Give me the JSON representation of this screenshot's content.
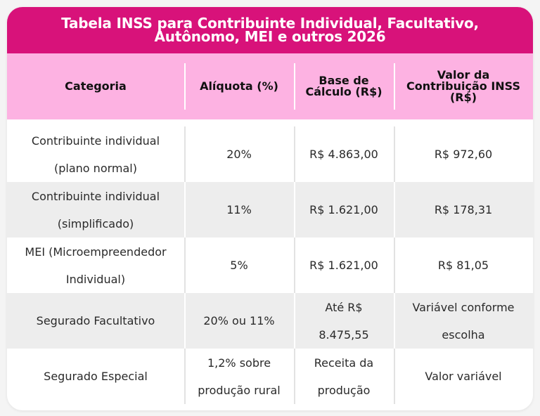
{
  "title": "Tabela INSS para Contribuinte Individual, Facultativo, Autônomo, MEI e outros 2026",
  "colors": {
    "title_bar": "#d8127a",
    "header_row": "#fdb2e2",
    "alt_row": "#ededed"
  },
  "table": {
    "headers": [
      "Categoria",
      "Alíquota (%)",
      "Base de Cálculo (R$)",
      "Valor da Contribuição INSS (R$)"
    ],
    "rows": [
      [
        "Contribuinte individual (plano normal)",
        "20%",
        "R$ 4.863,00",
        "R$ 972,60"
      ],
      [
        "Contribuinte individual (simplificado)",
        "11%",
        "R$ 1.621,00",
        "R$ 178,31"
      ],
      [
        "MEI (Microempreendedor Individual)",
        "5%",
        "R$ 1.621,00",
        "R$ 81,05"
      ],
      [
        "Segurado Facultativo",
        "20% ou 11%",
        "Até R$ 8.475,55",
        "Variável conforme escolha"
      ],
      [
        "Segurado Especial",
        "1,2% sobre produção rural",
        "Receita da produção",
        "Valor variável"
      ]
    ]
  }
}
